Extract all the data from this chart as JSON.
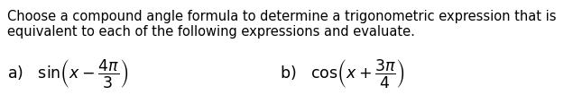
{
  "title_line1": "Choose a compound angle formula to determine a trigonometric expression that is",
  "title_line2": "equivalent to each of the following expressions and evaluate.",
  "background_color": "#ffffff",
  "text_color": "#000000",
  "font_size_body": 10.5,
  "font_size_math": 12.5,
  "fig_width": 6.35,
  "fig_height": 1.06,
  "dpi": 100,
  "expr_a": "a)   $\\sin\\!\\left(x - \\dfrac{4\\pi}{3}\\right)$",
  "expr_b": "b)   $\\cos\\!\\left(x + \\dfrac{3\\pi}{4}\\right)$"
}
